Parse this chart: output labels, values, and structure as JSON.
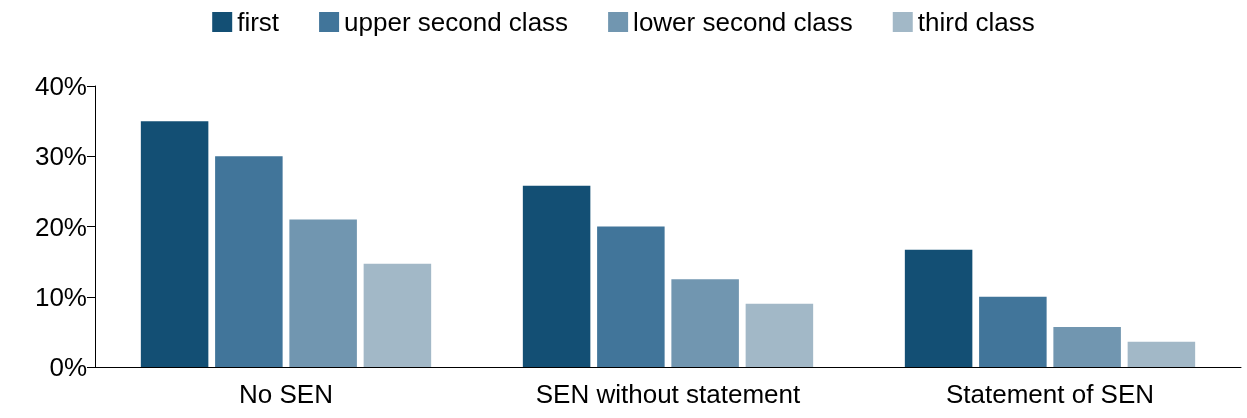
{
  "chart_data": {
    "type": "bar",
    "categories": [
      "No SEN",
      "SEN without statement",
      "Statement of SEN"
    ],
    "series": [
      {
        "name": "first",
        "color": "#134f74",
        "values": [
          35,
          25.8,
          16.7
        ]
      },
      {
        "name": "upper second class",
        "color": "#41759a",
        "values": [
          30,
          20,
          10
        ]
      },
      {
        "name": "lower second class",
        "color": "#7196b0",
        "values": [
          21,
          12.5,
          5.7
        ]
      },
      {
        "name": "third class",
        "color": "#a2b8c7",
        "values": [
          14.7,
          9,
          3.6
        ]
      }
    ],
    "ylim": [
      0,
      40
    ],
    "yticks": [
      {
        "value": 0,
        "label": "0%"
      },
      {
        "value": 10,
        "label": "10%"
      },
      {
        "value": 20,
        "label": "20%"
      },
      {
        "value": 30,
        "label": "30%"
      },
      {
        "value": 40,
        "label": "40%"
      }
    ],
    "grid": false,
    "legend": "top"
  }
}
